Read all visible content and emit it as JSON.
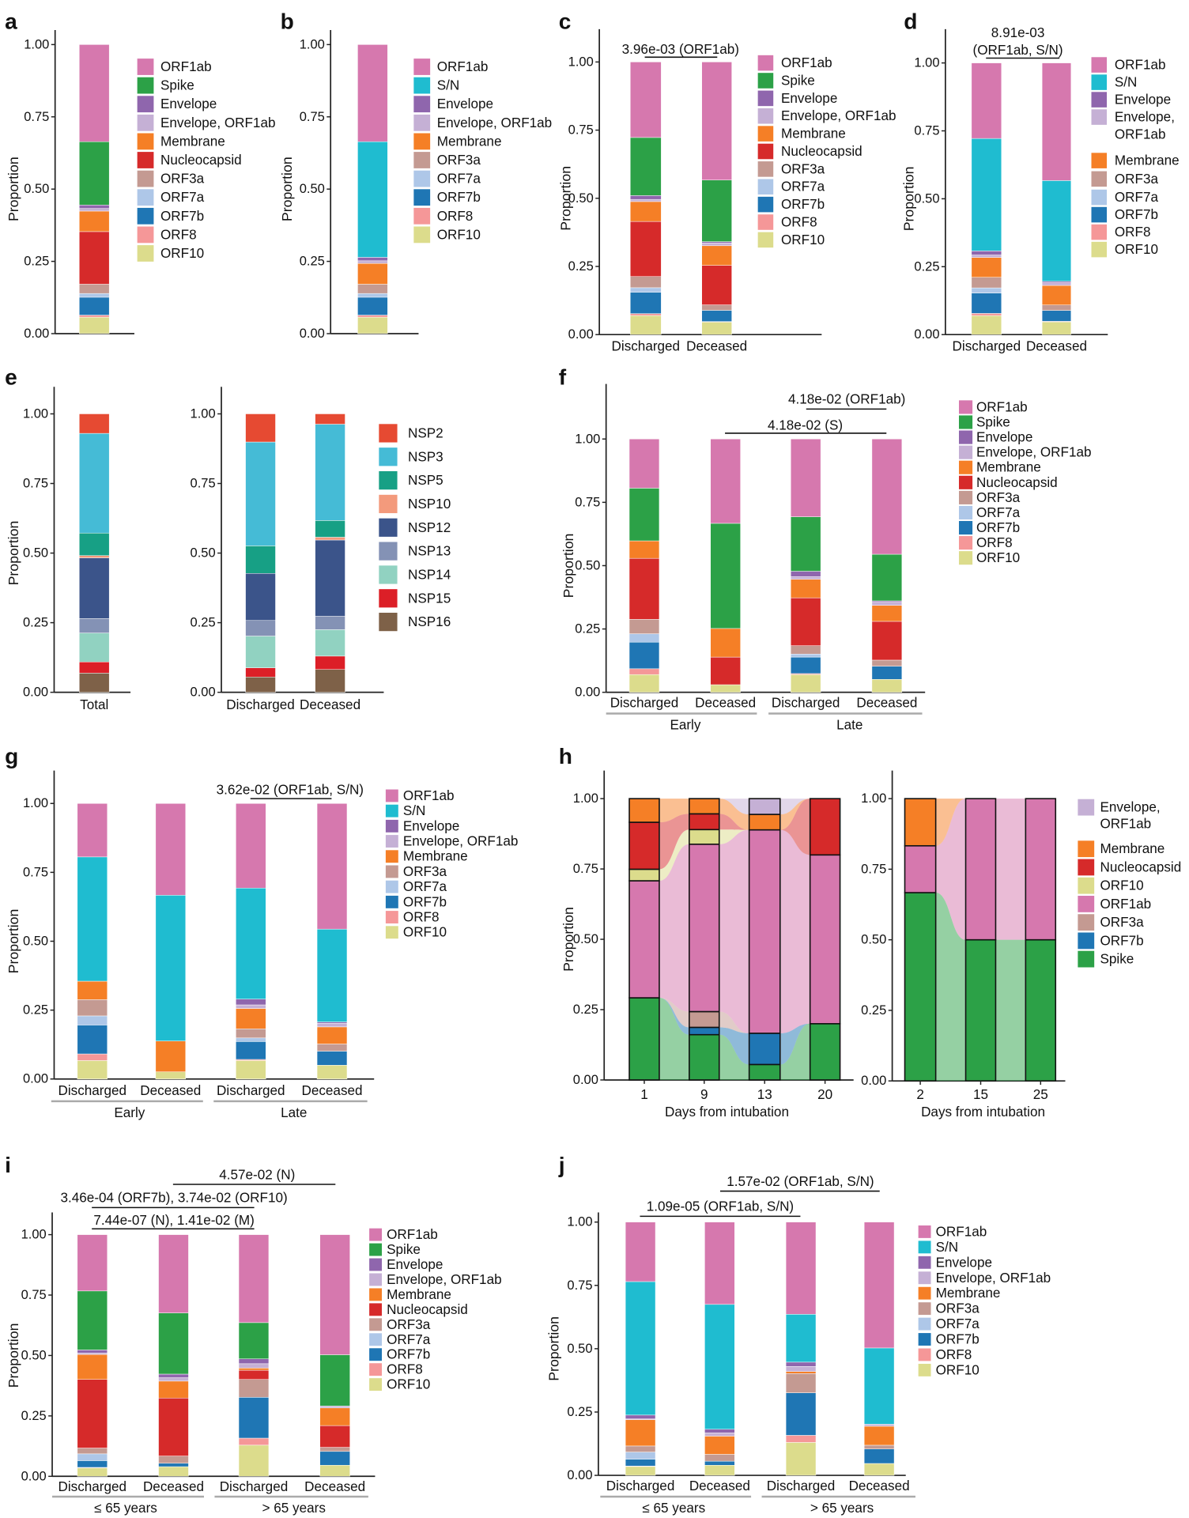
{
  "colors": {
    "ORF1ab": "#d678ae",
    "Spike": "#2ca147",
    "S/N": "#1fbcd0",
    "Envelope": "#8f66ad",
    "Envelope, ORF1ab": "#c5b0d5",
    "Membrane": "#f57f26",
    "Nucleocapsid": "#d62a2a",
    "ORF3a": "#c49a92",
    "ORF7a": "#aec7e8",
    "ORF7b": "#1f76b4",
    "ORF8": "#f59798",
    "ORF10": "#dcdc8c",
    "NSP2": "#e64a32",
    "NSP3": "#45bbd6",
    "NSP5": "#17a085",
    "NSP10": "#f39a7c",
    "NSP12": "#3b548a",
    "NSP13": "#8492b5",
    "NSP14": "#91d2c1",
    "NSP15": "#dc1f27",
    "NSP16": "#7e6148"
  },
  "chart_data": [
    {
      "id": "a",
      "letter": "a",
      "type": "bar",
      "stacked": true,
      "ylabel": "Proportion",
      "ylim": [
        0,
        1
      ],
      "yticks": [
        "0.00",
        "0.25",
        "0.50",
        "0.75",
        "1.00"
      ],
      "order": [
        "ORF10",
        "ORF8",
        "ORF7b",
        "ORF7a",
        "ORF3a",
        "Nucleocapsid",
        "Membrane",
        "Envelope, ORF1ab",
        "Envelope",
        "Spike",
        "ORF1ab"
      ],
      "bars": [
        {
          "label": "",
          "values": [
            0.057,
            0.007,
            0.062,
            0.013,
            0.032,
            0.182,
            0.071,
            0.009,
            0.012,
            0.219,
            0.336
          ]
        }
      ],
      "legend": [
        "ORF1ab",
        "Spike",
        "Envelope",
        "Envelope, ORF1ab",
        "Membrane",
        "Nucleocapsid",
        "ORF3a",
        "ORF7a",
        "ORF7b",
        "ORF8",
        "ORF10"
      ],
      "annotations": [],
      "groups": []
    },
    {
      "id": "b",
      "letter": "b",
      "type": "bar",
      "stacked": true,
      "ylabel": "Proportion",
      "ylim": [
        0,
        1
      ],
      "yticks": [
        "0.00",
        "0.25",
        "0.50",
        "0.75",
        "1.00"
      ],
      "order": [
        "ORF10",
        "ORF8",
        "ORF7b",
        "ORF7a",
        "ORF3a",
        "Membrane",
        "Envelope, ORF1ab",
        "Envelope",
        "S/N",
        "ORF1ab"
      ],
      "bars": [
        {
          "label": "",
          "values": [
            0.057,
            0.007,
            0.062,
            0.013,
            0.032,
            0.072,
            0.009,
            0.012,
            0.4,
            0.336
          ]
        }
      ],
      "legend": [
        "ORF1ab",
        "S/N",
        "Envelope",
        "Envelope, ORF1ab",
        "Membrane",
        "ORF3a",
        "ORF7a",
        "ORF7b",
        "ORF8",
        "ORF10"
      ],
      "annotations": [],
      "groups": []
    },
    {
      "id": "c",
      "letter": "c",
      "type": "bar",
      "stacked": true,
      "ylabel": "Proportion",
      "ylim": [
        0,
        1
      ],
      "yticks": [
        "0.00",
        "0.25",
        "0.50",
        "0.75",
        "1.00"
      ],
      "order": [
        "ORF10",
        "ORF8",
        "ORF7b",
        "ORF7a",
        "ORF3a",
        "Nucleocapsid",
        "Membrane",
        "Envelope, ORF1ab",
        "Envelope",
        "Spike",
        "ORF1ab"
      ],
      "bars": [
        {
          "label": "Discharged",
          "values": [
            0.07,
            0.007,
            0.078,
            0.017,
            0.041,
            0.202,
            0.073,
            0.008,
            0.014,
            0.213,
            0.277
          ]
        },
        {
          "label": "Deceased",
          "values": [
            0.046,
            0.002,
            0.041,
            0,
            0.02,
            0.145,
            0.072,
            0.01,
            0.005,
            0.226,
            0.433
          ]
        }
      ],
      "legend": [
        "ORF1ab",
        "Spike",
        "Envelope",
        "Envelope, ORF1ab",
        "Membrane",
        "Nucleocapsid",
        "ORF3a",
        "ORF7a",
        "ORF7b",
        "ORF8",
        "ORF10"
      ],
      "annotations": [
        [
          "3.96e-03 (ORF1ab)"
        ]
      ],
      "groups": []
    },
    {
      "id": "d",
      "letter": "d",
      "type": "bar",
      "stacked": true,
      "ylabel": "Proportion",
      "ylim": [
        0,
        1
      ],
      "yticks": [
        "0.00",
        "0.25",
        "0.50",
        "0.75",
        "1.00"
      ],
      "order": [
        "ORF10",
        "ORF8",
        "ORF7b",
        "ORF7a",
        "ORF3a",
        "Membrane",
        "Envelope, ORF1ab",
        "Envelope",
        "S/N",
        "ORF1ab"
      ],
      "bars": [
        {
          "label": "Discharged",
          "values": [
            0.07,
            0.008,
            0.075,
            0.019,
            0.039,
            0.073,
            0.009,
            0.015,
            0.414,
            0.278
          ]
        },
        {
          "label": "Deceased",
          "values": [
            0.047,
            0.002,
            0.04,
            0,
            0.02,
            0.072,
            0.01,
            0.005,
            0.371,
            0.433
          ]
        }
      ],
      "legend": [
        "ORF1ab",
        "S/N",
        "Envelope",
        [
          "Envelope,",
          "ORF1ab"
        ],
        "Membrane",
        "ORF3a",
        "ORF7a",
        "ORF7b",
        "ORF8",
        "ORF10"
      ],
      "annotations": [
        [
          "8.91e-03",
          "(ORF1ab, S/N)"
        ]
      ],
      "groups": []
    },
    {
      "id": "e1",
      "letter": "e",
      "type": "bar",
      "stacked": true,
      "ylabel": "Proportion",
      "ylim": [
        0,
        1
      ],
      "yticks": [
        "0.00",
        "0.25",
        "0.50",
        "0.75",
        "1.00"
      ],
      "order": [
        "NSP16",
        "NSP15",
        "NSP14",
        "NSP13",
        "NSP12",
        "NSP10",
        "NSP5",
        "NSP3",
        "NSP2"
      ],
      "bars": [
        {
          "label": "Total",
          "values": [
            0.069,
            0.04,
            0.104,
            0.052,
            0.218,
            0.008,
            0.081,
            0.358,
            0.07
          ]
        }
      ],
      "legend": [],
      "annotations": [],
      "groups": []
    },
    {
      "id": "e2",
      "letter": "",
      "type": "bar",
      "stacked": true,
      "ylabel": "",
      "ylim": [
        0,
        1
      ],
      "yticks": [
        "0.00",
        "0.25",
        "0.50",
        "0.75",
        "1.00"
      ],
      "order": [
        "NSP16",
        "NSP15",
        "NSP14",
        "NSP13",
        "NSP12",
        "NSP10",
        "NSP5",
        "NSP3",
        "NSP2"
      ],
      "bars": [
        {
          "label": "Discharged",
          "values": [
            0.055,
            0.033,
            0.114,
            0.056,
            0.169,
            0,
            0.099,
            0.373,
            0.101
          ]
        },
        {
          "label": "Deceased",
          "values": [
            0.082,
            0.048,
            0.095,
            0.048,
            0.274,
            0.01,
            0.06,
            0.346,
            0.037
          ]
        }
      ],
      "legend": [
        "NSP2",
        "NSP3",
        "NSP5",
        "NSP10",
        "NSP12",
        "NSP13",
        "NSP14",
        "NSP15",
        "NSP16"
      ],
      "annotations": [],
      "groups": []
    },
    {
      "id": "f",
      "letter": "f",
      "type": "bar",
      "stacked": true,
      "ylabel": "Proportion",
      "ylim": [
        0,
        1
      ],
      "yticks": [
        "0.00",
        "0.25",
        "0.50",
        "0.75",
        "1.00"
      ],
      "order": [
        "ORF10",
        "ORF8",
        "ORF7b",
        "ORF7a",
        "ORF3a",
        "Nucleocapsid",
        "Membrane",
        "Envelope, ORF1ab",
        "Envelope",
        "Spike",
        "ORF1ab"
      ],
      "bars": [
        {
          "label": "Discharged",
          "values": [
            0.07,
            0.023,
            0.105,
            0.033,
            0.057,
            0.241,
            0.069,
            0,
            0,
            0.208,
            0.194
          ]
        },
        {
          "label": "Deceased",
          "values": [
            0.03,
            0,
            0,
            0,
            0,
            0.109,
            0.113,
            0,
            0,
            0.415,
            0.333
          ]
        },
        {
          "label": "Discharged",
          "values": [
            0.07,
            0.004,
            0.065,
            0.012,
            0.033,
            0.189,
            0.073,
            0.011,
            0.021,
            0.215,
            0.307
          ]
        },
        {
          "label": "Deceased",
          "values": [
            0.051,
            0,
            0.052,
            0,
            0.024,
            0.153,
            0.063,
            0.013,
            0.005,
            0.184,
            0.455
          ]
        }
      ],
      "legend": [
        "ORF1ab",
        "Spike",
        "Envelope",
        "Envelope, ORF1ab",
        "Membrane",
        "Nucleocapsid",
        "ORF3a",
        "ORF7a",
        "ORF7b",
        "ORF8",
        "ORF10"
      ],
      "annotations": [
        [
          "4.18e-02 (ORF1ab)"
        ],
        [
          "4.18e-02 (S)"
        ]
      ],
      "groups": [
        "Early",
        "Late"
      ]
    },
    {
      "id": "g",
      "letter": "g",
      "type": "bar",
      "stacked": true,
      "ylabel": "Proportion",
      "ylim": [
        0,
        1
      ],
      "yticks": [
        "0.00",
        "0.25",
        "0.50",
        "0.75",
        "1.00"
      ],
      "order": [
        "ORF10",
        "ORF8",
        "ORF7b",
        "ORF7a",
        "ORF3a",
        "Membrane",
        "Envelope, ORF1ab",
        "Envelope",
        "S/N",
        "ORF1ab"
      ],
      "bars": [
        {
          "label": "Discharged",
          "values": [
            0.067,
            0.024,
            0.105,
            0.033,
            0.059,
            0.067,
            0,
            0,
            0.451,
            0.194
          ]
        },
        {
          "label": "Deceased",
          "values": [
            0.026,
            0,
            0,
            0,
            0,
            0.112,
            0,
            0,
            0.529,
            0.333
          ]
        },
        {
          "label": "Discharged",
          "values": [
            0.067,
            0.004,
            0.065,
            0.013,
            0.033,
            0.074,
            0.013,
            0.021,
            0.403,
            0.307
          ]
        },
        {
          "label": "Deceased",
          "values": [
            0.05,
            0,
            0.051,
            0,
            0.026,
            0.062,
            0.013,
            0.005,
            0.337,
            0.456
          ]
        }
      ],
      "legend": [
        "ORF1ab",
        "S/N",
        "Envelope",
        "Envelope, ORF1ab",
        "Membrane",
        "ORF3a",
        "ORF7a",
        "ORF7b",
        "ORF8",
        "ORF10"
      ],
      "annotations": [
        [
          "3.62e-02 (ORF1ab, S/N)"
        ]
      ],
      "groups": [
        "Early",
        "Late"
      ]
    },
    {
      "id": "h1",
      "letter": "h",
      "type": "bar",
      "stacked": true,
      "alluvial": true,
      "ylabel": "Proportion",
      "xlabel": "Days from intubation",
      "ylim": [
        0,
        1
      ],
      "yticks": [
        "0.00",
        "0.25",
        "0.50",
        "0.75",
        "1.00"
      ],
      "order": [
        "Spike",
        "ORF7b",
        "ORF3a",
        "ORF1ab",
        "ORF10",
        "Nucleocapsid",
        "Membrane",
        "Envelope, ORF1ab"
      ],
      "bars": [
        {
          "label": "1",
          "values": [
            0.292,
            0,
            0,
            0.416,
            0.041,
            0.167,
            0.084,
            0
          ]
        },
        {
          "label": "9",
          "values": [
            0.161,
            0.026,
            0.056,
            0.595,
            0.052,
            0.056,
            0.054,
            0
          ]
        },
        {
          "label": "13",
          "values": [
            0.055,
            0.111,
            0,
            0.723,
            0,
            0,
            0.055,
            0.056
          ]
        },
        {
          "label": "20",
          "values": [
            0.2,
            0,
            0,
            0.6,
            0,
            0.2,
            0,
            0
          ]
        }
      ],
      "legend": [],
      "annotations": [],
      "groups": []
    },
    {
      "id": "h2",
      "letter": "",
      "type": "bar",
      "stacked": true,
      "alluvial": true,
      "ylabel": "",
      "xlabel": "Days from intubation",
      "ylim": [
        0,
        1
      ],
      "yticks": [
        "0.00",
        "0.25",
        "0.50",
        "0.75",
        "1.00"
      ],
      "order": [
        "Spike",
        "ORF7b",
        "ORF3a",
        "ORF1ab",
        "ORF10",
        "Nucleocapsid",
        "Membrane",
        "Envelope, ORF1ab"
      ],
      "bars": [
        {
          "label": "2",
          "values": [
            0.667,
            0,
            0,
            0.166,
            0,
            0,
            0.167,
            0
          ]
        },
        {
          "label": "15",
          "values": [
            0.5,
            0,
            0,
            0.5,
            0,
            0,
            0,
            0
          ]
        },
        {
          "label": "25",
          "values": [
            0.5,
            0,
            0,
            0.5,
            0,
            0,
            0,
            0
          ]
        }
      ],
      "legend": [
        [
          "Envelope,",
          "ORF1ab"
        ],
        "Membrane",
        "Nucleocapsid",
        "ORF10",
        "ORF1ab",
        "ORF3a",
        "ORF7b",
        "Spike"
      ],
      "annotations": [],
      "groups": []
    },
    {
      "id": "i",
      "letter": "i",
      "type": "bar",
      "stacked": true,
      "ylabel": "Proportion",
      "ylim": [
        0,
        1
      ],
      "yticks": [
        "0.00",
        "0.25",
        "0.50",
        "0.75",
        "1.00"
      ],
      "order": [
        "ORF10",
        "ORF8",
        "ORF7b",
        "ORF7a",
        "ORF3a",
        "Nucleocapsid",
        "Membrane",
        "Envelope, ORF1ab",
        "Envelope",
        "Spike",
        "ORF1ab"
      ],
      "bars": [
        {
          "label": "Discharged",
          "values": [
            0.035,
            0.002,
            0.028,
            0.028,
            0.024,
            0.284,
            0.103,
            0.006,
            0.013,
            0.244,
            0.233
          ]
        },
        {
          "label": "Deceased",
          "values": [
            0.04,
            0,
            0.014,
            0,
            0.03,
            0.24,
            0.07,
            0.014,
            0.015,
            0.253,
            0.324
          ]
        },
        {
          "label": "Discharged",
          "values": [
            0.129,
            0.029,
            0.169,
            0,
            0.074,
            0.038,
            0.009,
            0.018,
            0.02,
            0.15,
            0.364
          ]
        },
        {
          "label": "Deceased",
          "values": [
            0.046,
            0,
            0.057,
            0,
            0.017,
            0.09,
            0.073,
            0.008,
            0,
            0.212,
            0.497
          ]
        }
      ],
      "legend": [
        "ORF1ab",
        "Spike",
        "Envelope",
        "Envelope, ORF1ab",
        "Membrane",
        "Nucleocapsid",
        "ORF3a",
        "ORF7a",
        "ORF7b",
        "ORF8",
        "ORF10"
      ],
      "annotations": [
        [
          "4.57e-02 (N)"
        ],
        [
          "3.46e-04 (ORF7b), 3.74e-02 (ORF10)"
        ],
        [
          "7.44e-07 (N), 1.41e-02 (M)"
        ]
      ],
      "groups": [
        "≤ 65 years",
        "> 65 years"
      ]
    },
    {
      "id": "j",
      "letter": "j",
      "type": "bar",
      "stacked": true,
      "ylabel": "Proportion",
      "ylim": [
        0,
        1
      ],
      "yticks": [
        "0.00",
        "0.25",
        "0.50",
        "0.75",
        "1.00"
      ],
      "order": [
        "ORF10",
        "ORF8",
        "ORF7b",
        "ORF7a",
        "ORF3a",
        "Membrane",
        "Envelope, ORF1ab",
        "Envelope",
        "S/N",
        "ORF1ab"
      ],
      "bars": [
        {
          "label": "Discharged",
          "values": [
            0.035,
            0.002,
            0.027,
            0.028,
            0.024,
            0.104,
            0.003,
            0.015,
            0.527,
            0.235
          ]
        },
        {
          "label": "Deceased",
          "values": [
            0.04,
            0,
            0.016,
            0,
            0.027,
            0.072,
            0.013,
            0.014,
            0.493,
            0.325
          ]
        },
        {
          "label": "Discharged",
          "values": [
            0.13,
            0.028,
            0.168,
            0,
            0.076,
            0.008,
            0.02,
            0.017,
            0.189,
            0.364
          ]
        },
        {
          "label": "Deceased",
          "values": [
            0.047,
            0,
            0.057,
            0,
            0.015,
            0.075,
            0.008,
            0,
            0.301,
            0.497
          ]
        }
      ],
      "legend": [
        "ORF1ab",
        "S/N",
        "Envelope",
        "Envelope, ORF1ab",
        "Membrane",
        "ORF3a",
        "ORF7a",
        "ORF7b",
        "ORF8",
        "ORF10"
      ],
      "annotations": [
        [
          "1.57e-02 (ORF1ab, S/N)"
        ],
        [
          "1.09e-05 (ORF1ab, S/N)"
        ]
      ],
      "groups": [
        "≤ 65 years",
        "> 65 years"
      ]
    }
  ]
}
